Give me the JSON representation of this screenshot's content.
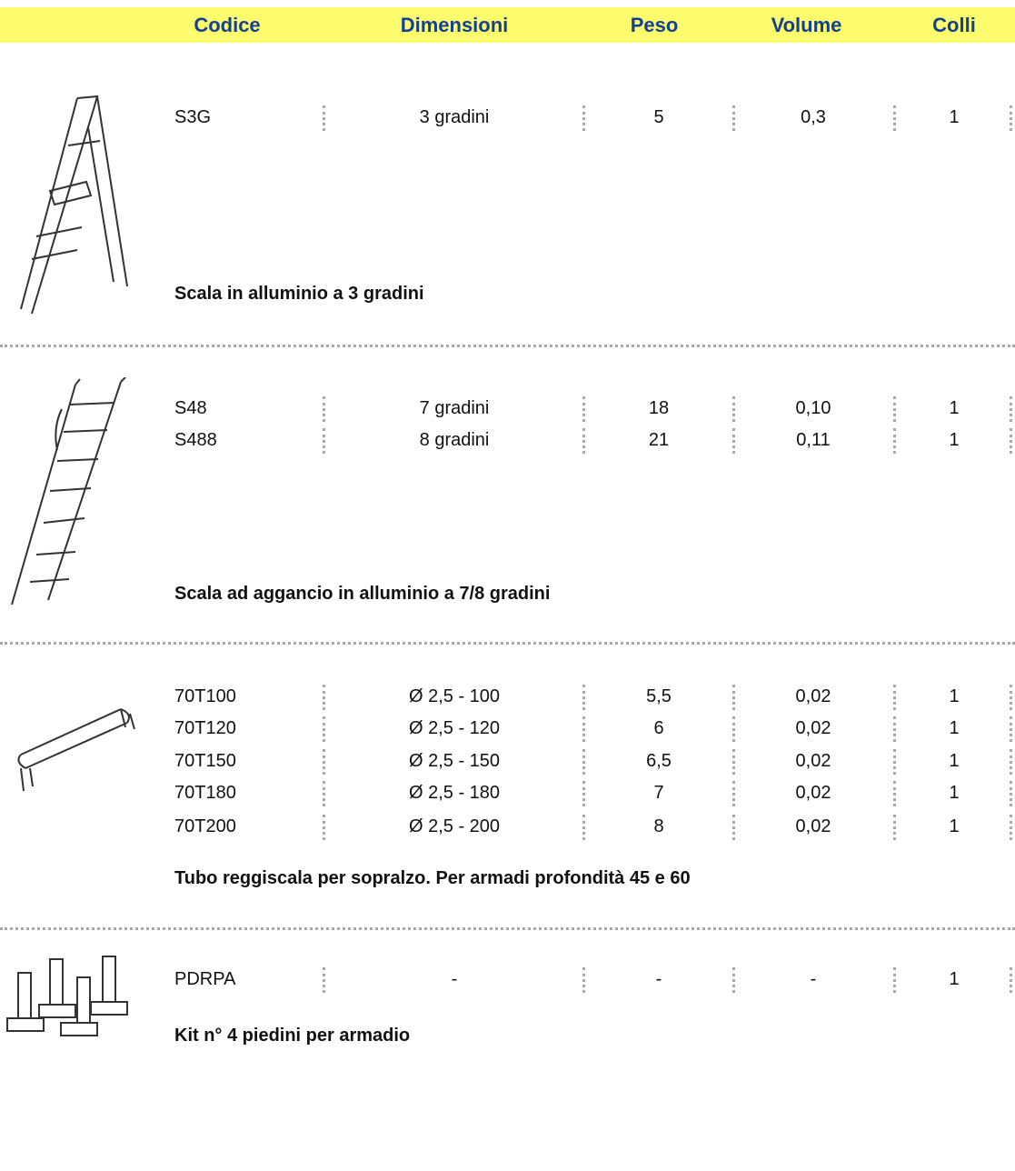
{
  "header": {
    "columns": [
      "Codice",
      "Dimensioni",
      "Peso",
      "Volume",
      "Colli"
    ]
  },
  "sections": [
    {
      "rows": [
        [
          "S3G",
          "3 gradini",
          "5",
          "0,3",
          "1"
        ]
      ],
      "description": "Scala in alluminio a 3 gradini"
    },
    {
      "rows": [
        [
          "S48",
          "7 gradini",
          "18",
          "0,10",
          "1"
        ],
        [
          "S488",
          "8 gradini",
          "21",
          "0,11",
          "1"
        ]
      ],
      "description": "Scala ad aggancio in alluminio a 7/8 gradini"
    },
    {
      "rows": [
        [
          "70T100",
          "Ø 2,5 - 100",
          "5,5",
          "0,02",
          "1"
        ],
        [
          "70T120",
          "Ø 2,5 - 120",
          "6",
          "0,02",
          "1"
        ],
        [
          "70T150",
          "Ø 2,5 - 150",
          "6,5",
          "0,02",
          "1"
        ],
        [
          "70T180",
          "Ø 2,5 - 180",
          "7",
          "0,02",
          "1"
        ],
        [
          "70T200",
          "Ø 2,5 - 200",
          "8",
          "0,02",
          "1"
        ]
      ],
      "description": "Tubo reggiscala per sopralzo. Per armadi profondità 45 e 60"
    },
    {
      "rows": [
        [
          "PDRPA",
          "-",
          "-",
          "-",
          "1"
        ]
      ],
      "description": "Kit n° 4 piedini per armadio"
    }
  ]
}
